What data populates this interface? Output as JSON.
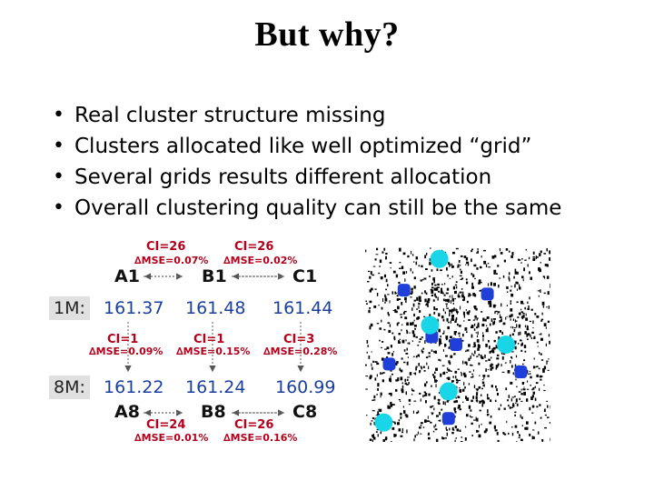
{
  "slide": {
    "title": "But why?",
    "bullets": [
      "Real cluster structure missing",
      "Clusters allocated like well optimized “grid”",
      "Several grids results different allocation",
      "Overall clustering quality can still be the same"
    ]
  },
  "diagram": {
    "top_pairs": [
      {
        "ci": "CI=26",
        "mse": "∆MSE=0.07%"
      },
      {
        "ci": "CI=26",
        "mse": "∆MSE=0.02%"
      }
    ],
    "top_nodes": [
      "A1",
      "B1",
      "C1"
    ],
    "row1_label": "1M:",
    "row1_values": [
      "161.37",
      "161.48",
      "161.44"
    ],
    "mid_pairs": [
      {
        "ci": "CI=1",
        "mse": "∆MSE=0.09%"
      },
      {
        "ci": "CI=1",
        "mse": "∆MSE=0.15%"
      },
      {
        "ci": "CI=3",
        "mse": "∆MSE=0.28%"
      }
    ],
    "row2_label": "8M:",
    "row2_values": [
      "161.22",
      "161.24",
      "160.99"
    ],
    "bottom_nodes": [
      "A8",
      "B8",
      "C8"
    ],
    "bottom_pairs": [
      {
        "ci": "CI=24",
        "mse": "∆MSE=0.01%"
      },
      {
        "ci": "CI=26",
        "mse": "∆MSE=0.16%"
      }
    ],
    "colors": {
      "ci_text": "#b3001b",
      "value_text": "#1a3fa0",
      "row_label_bg": "#e0e0e0"
    }
  },
  "scatter": {
    "centroid_colors": {
      "dark": "#1f3fd8",
      "light": "#18d6e8"
    },
    "centroids_dark": [
      [
        0.21,
        0.22
      ],
      [
        0.66,
        0.24
      ],
      [
        0.49,
        0.5
      ],
      [
        0.13,
        0.6
      ],
      [
        0.84,
        0.64
      ],
      [
        0.45,
        0.88
      ],
      [
        0.36,
        0.46
      ]
    ],
    "centroids_light": [
      [
        0.4,
        0.06
      ],
      [
        0.35,
        0.4
      ],
      [
        0.76,
        0.5
      ],
      [
        0.45,
        0.74
      ],
      [
        0.1,
        0.9
      ]
    ]
  }
}
